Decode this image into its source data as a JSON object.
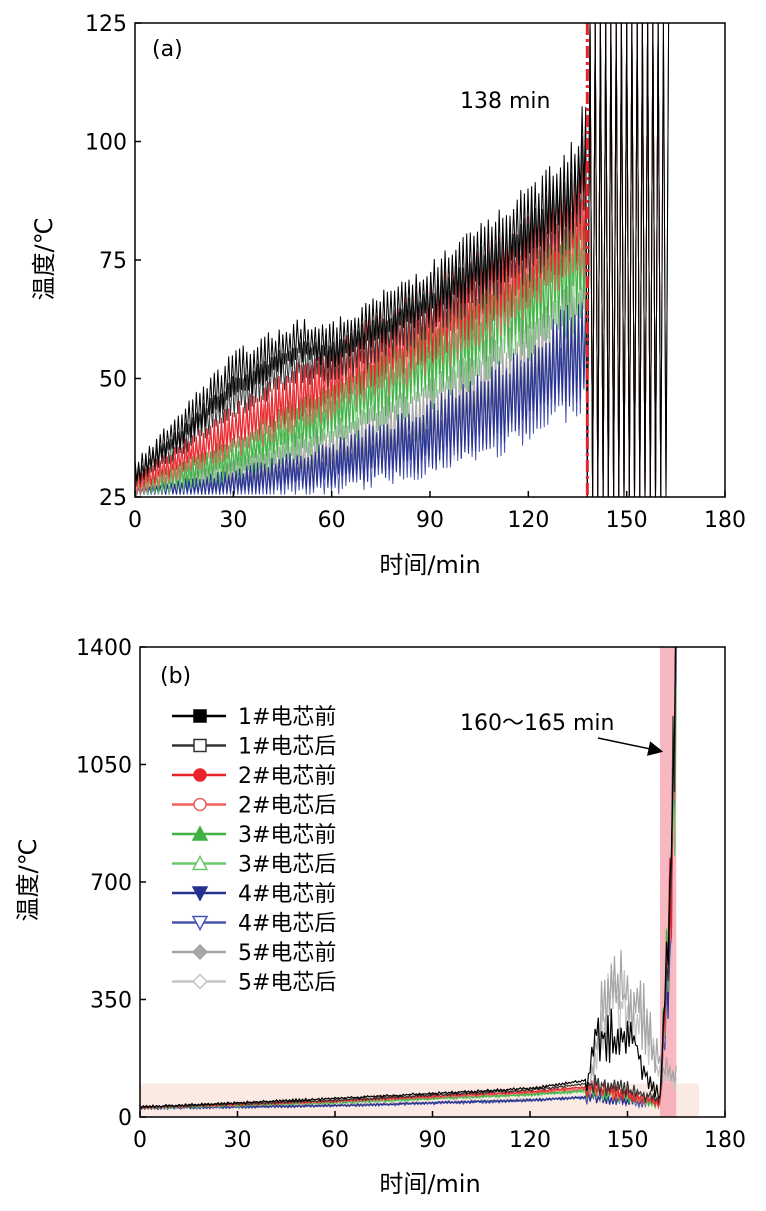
{
  "chart_data": [
    {
      "type": "line",
      "panel_label": "(a)",
      "xlabel": "时间/min",
      "ylabel": "温度/℃",
      "xlim": [
        0,
        180
      ],
      "ylim": [
        25,
        125
      ],
      "xticks": [
        "0",
        "30",
        "60",
        "90",
        "120",
        "150",
        "180"
      ],
      "yticks": [
        "25",
        "50",
        "75",
        "100",
        "125"
      ],
      "annotation": {
        "text": "138 min",
        "x": 138
      },
      "series": [
        {
          "name": "1#电芯前",
          "color": "#000000",
          "x": [
            0,
            30,
            50,
            60,
            90,
            120,
            135,
            137
          ],
          "y": [
            30,
            50,
            58,
            57,
            68,
            82,
            92,
            100
          ],
          "amp": [
            3,
            6,
            5,
            5,
            7,
            9,
            11,
            12
          ]
        },
        {
          "name": "1#电芯后",
          "color": "#333333",
          "x": [
            0,
            30,
            50,
            60,
            90,
            120,
            135,
            137
          ],
          "y": [
            29,
            46,
            54,
            53,
            64,
            78,
            88,
            95
          ],
          "amp": [
            2,
            5,
            5,
            5,
            6,
            8,
            10,
            11
          ]
        },
        {
          "name": "2#电芯前",
          "color": "#e8232a",
          "x": [
            0,
            30,
            60,
            90,
            120,
            137
          ],
          "y": [
            28,
            40,
            51,
            62,
            75,
            86
          ],
          "amp": [
            2,
            5,
            7,
            9,
            10,
            12
          ]
        },
        {
          "name": "2#电芯后",
          "color": "#f06060",
          "x": [
            0,
            30,
            60,
            90,
            120,
            137
          ],
          "y": [
            27,
            38,
            48,
            59,
            72,
            82
          ],
          "amp": [
            2,
            5,
            7,
            9,
            10,
            11
          ]
        },
        {
          "name": "3#电芯前",
          "color": "#3fb044",
          "x": [
            0,
            30,
            60,
            90,
            120,
            137
          ],
          "y": [
            27,
            34,
            44,
            55,
            67,
            77
          ],
          "amp": [
            2,
            4,
            7,
            9,
            10,
            11
          ]
        },
        {
          "name": "3#电芯后",
          "color": "#6cc870",
          "x": [
            0,
            30,
            60,
            90,
            120,
            137
          ],
          "y": [
            26,
            32,
            41,
            51,
            63,
            72
          ],
          "amp": [
            2,
            4,
            6,
            8,
            10,
            11
          ]
        },
        {
          "name": "4#电芯前",
          "color": "#27318f",
          "x": [
            0,
            30,
            60,
            90,
            120,
            137
          ],
          "y": [
            26,
            28,
            32,
            38,
            48,
            58
          ],
          "amp": [
            1,
            3,
            5,
            8,
            10,
            12
          ]
        },
        {
          "name": "4#电芯后",
          "color": "#4a55b0",
          "x": [
            0,
            30,
            60,
            90,
            120,
            137
          ],
          "y": [
            26,
            27,
            30,
            36,
            45,
            55
          ],
          "amp": [
            1,
            3,
            5,
            7,
            10,
            12
          ]
        },
        {
          "name": "5#电芯前",
          "color": "#a6a6a6",
          "x": [
            0,
            30,
            60,
            90,
            120,
            137
          ],
          "y": [
            27,
            30,
            35,
            42,
            52,
            60
          ],
          "amp": [
            2,
            4,
            6,
            9,
            12,
            14
          ]
        },
        {
          "name": "5#电芯后",
          "color": "#c4c4c4",
          "x": [
            0,
            30,
            60,
            90,
            120,
            137
          ],
          "y": [
            27,
            29,
            33,
            40,
            50,
            58
          ],
          "amp": [
            2,
            4,
            6,
            9,
            12,
            14
          ]
        }
      ]
    },
    {
      "type": "line",
      "panel_label": "(b)",
      "xlabel": "时间/min",
      "ylabel": "温度/℃",
      "xlim": [
        0,
        180
      ],
      "ylim": [
        0,
        1400
      ],
      "xticks": [
        "0",
        "30",
        "60",
        "90",
        "120",
        "150",
        "180"
      ],
      "yticks": [
        "0",
        "350",
        "700",
        "1050",
        "1400"
      ],
      "annotation": {
        "text": "160～165 min",
        "x_range": [
          160,
          165
        ],
        "arrow_to": [
          161,
          1090
        ]
      },
      "legend_position": "top-left",
      "series": [
        {
          "name": "1#电芯前",
          "color": "#000000",
          "marker": "filled-square",
          "x": [
            0,
            60,
            120,
            138,
            140,
            152,
            155,
            160,
            163,
            165
          ],
          "y": [
            30,
            55,
            85,
            110,
            250,
            230,
            150,
            60,
            650,
            1350
          ]
        },
        {
          "name": "1#电芯后",
          "color": "#333333",
          "marker": "open-square",
          "x": [
            0,
            60,
            120,
            138,
            150,
            160,
            163,
            165
          ],
          "y": [
            28,
            50,
            80,
            100,
            80,
            50,
            600,
            1300
          ]
        },
        {
          "name": "2#电芯前",
          "color": "#e8232a",
          "marker": "filled-circle",
          "x": [
            0,
            60,
            120,
            138,
            150,
            160,
            163,
            165
          ],
          "y": [
            28,
            48,
            75,
            90,
            70,
            40,
            600,
            1300
          ]
        },
        {
          "name": "2#电芯后",
          "color": "#f06060",
          "marker": "open-circle",
          "x": [
            0,
            60,
            120,
            138,
            150,
            160,
            163,
            165
          ],
          "y": [
            27,
            46,
            72,
            86,
            66,
            40,
            560,
            1250
          ]
        },
        {
          "name": "3#电芯前",
          "color": "#3fb044",
          "marker": "filled-triangle-up",
          "x": [
            0,
            60,
            120,
            138,
            150,
            160,
            163,
            165
          ],
          "y": [
            27,
            44,
            68,
            80,
            60,
            40,
            660,
            1300
          ]
        },
        {
          "name": "3#电芯后",
          "color": "#6cc870",
          "marker": "open-triangle-up",
          "x": [
            0,
            60,
            120,
            138,
            150,
            160,
            163,
            165
          ],
          "y": [
            26,
            42,
            65,
            76,
            58,
            40,
            620,
            1250
          ]
        },
        {
          "name": "4#电芯前",
          "color": "#27318f",
          "marker": "filled-triangle-down",
          "x": [
            0,
            60,
            120,
            138,
            150,
            160,
            163,
            165
          ],
          "y": [
            26,
            34,
            50,
            60,
            50,
            40,
            500,
            1350
          ]
        },
        {
          "name": "4#电芯后",
          "color": "#4a55b0",
          "marker": "open-triangle-down",
          "x": [
            0,
            60,
            120,
            138,
            150,
            160,
            163,
            165
          ],
          "y": [
            26,
            33,
            48,
            58,
            48,
            40,
            450,
            1300
          ]
        },
        {
          "name": "5#电芯前",
          "color": "#a6a6a6",
          "marker": "filled-diamond",
          "x": [
            0,
            60,
            120,
            138,
            142,
            145,
            150,
            155,
            160,
            165
          ],
          "y": [
            27,
            36,
            52,
            60,
            300,
            420,
            350,
            300,
            150,
            120
          ]
        },
        {
          "name": "5#电芯后",
          "color": "#c4c4c4",
          "marker": "open-diamond",
          "x": [
            0,
            60,
            120,
            138,
            142,
            145,
            150,
            155,
            160,
            165
          ],
          "y": [
            27,
            35,
            50,
            58,
            250,
            380,
            320,
            260,
            120,
            100
          ]
        }
      ]
    }
  ]
}
